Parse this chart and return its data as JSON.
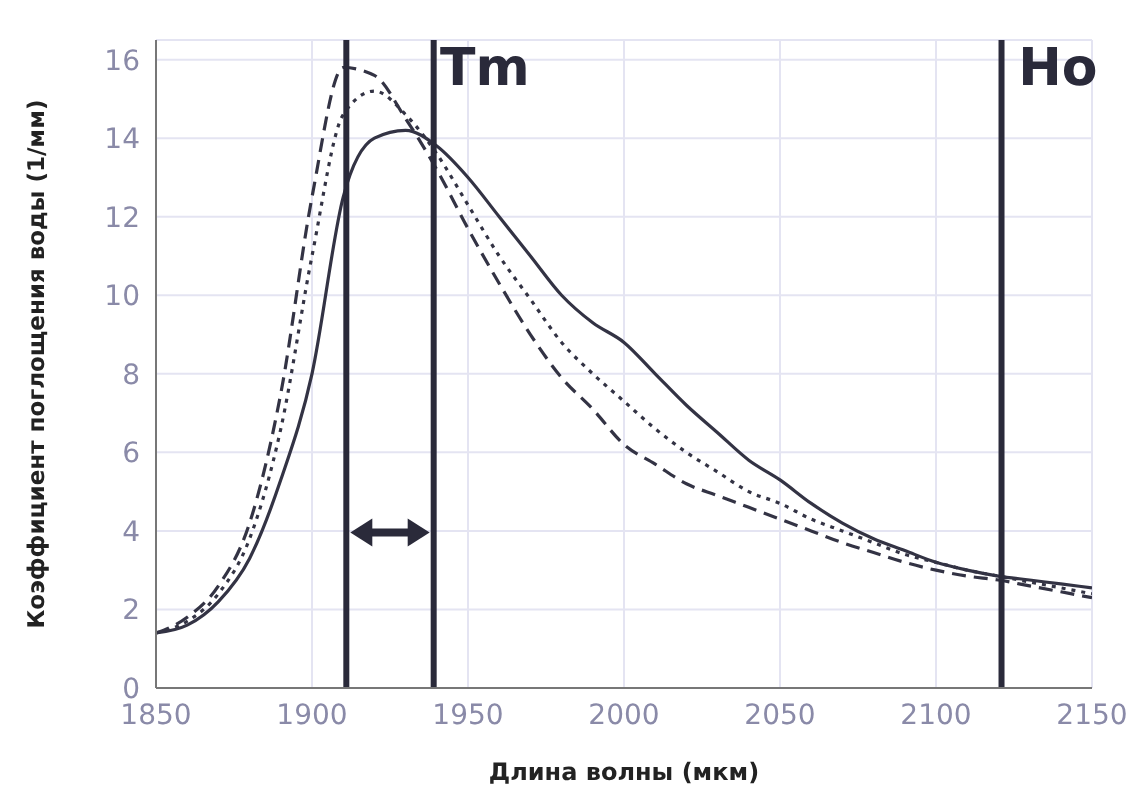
{
  "chart_data": {
    "type": "line",
    "xlabel": "Длина волны (мкм)",
    "ylabel": "Коэффициент поглощения воды (1/мм)",
    "x": [
      1850,
      1860,
      1870,
      1880,
      1890,
      1900,
      1910,
      1920,
      1930,
      1940,
      1950,
      1960,
      1970,
      1980,
      1990,
      2000,
      2010,
      2020,
      2030,
      2040,
      2050,
      2060,
      2070,
      2080,
      2090,
      2100,
      2110,
      2120,
      2130,
      2140,
      2150
    ],
    "series": [
      {
        "color": "#333344",
        "line_style": "solid",
        "values": [
          1.4,
          1.6,
          2.2,
          3.3,
          5.3,
          8.0,
          12.5,
          14.0,
          14.2,
          13.8,
          13.0,
          12.0,
          11.0,
          10.0,
          9.3,
          8.8,
          8.0,
          7.2,
          6.5,
          5.8,
          5.3,
          4.7,
          4.2,
          3.8,
          3.5,
          3.2,
          3.0,
          2.85,
          2.75,
          2.65,
          2.55
        ]
      },
      {
        "color": "#333344",
        "line_style": "dotted",
        "values": [
          1.4,
          1.7,
          2.4,
          3.8,
          6.6,
          11.0,
          14.6,
          15.2,
          14.6,
          13.6,
          12.3,
          11.0,
          9.9,
          8.8,
          8.0,
          7.3,
          6.6,
          6.0,
          5.5,
          5.0,
          4.7,
          4.3,
          4.0,
          3.7,
          3.4,
          3.2,
          3.0,
          2.85,
          2.7,
          2.55,
          2.4
        ]
      },
      {
        "color": "#333344",
        "line_style": "dashed",
        "values": [
          1.4,
          1.8,
          2.6,
          4.2,
          7.5,
          12.5,
          15.8,
          15.6,
          14.5,
          13.2,
          11.7,
          10.3,
          9.0,
          7.9,
          7.1,
          6.2,
          5.7,
          5.2,
          4.9,
          4.6,
          4.3,
          4.0,
          3.7,
          3.45,
          3.2,
          3.0,
          2.85,
          2.75,
          2.6,
          2.45,
          2.3
        ]
      }
    ],
    "xlim": [
      1850,
      2150
    ],
    "xticks": [
      1850,
      1900,
      1950,
      2000,
      2050,
      2100,
      2150
    ],
    "ylim": [
      0,
      16.5
    ],
    "yticks": [
      0,
      2,
      4,
      6,
      8,
      10,
      12,
      14,
      16
    ],
    "grid": true,
    "legend": false,
    "marker": "none",
    "ref_lines": [
      {
        "axis": "x",
        "value": 1911,
        "label": null,
        "color": "#2a2a3a"
      },
      {
        "axis": "x",
        "value": 1939,
        "label": "Tm",
        "color": "#2a2a3a"
      },
      {
        "axis": "x",
        "value": 2121,
        "label": "Ho",
        "color": "#2a2a3a"
      }
    ]
  }
}
